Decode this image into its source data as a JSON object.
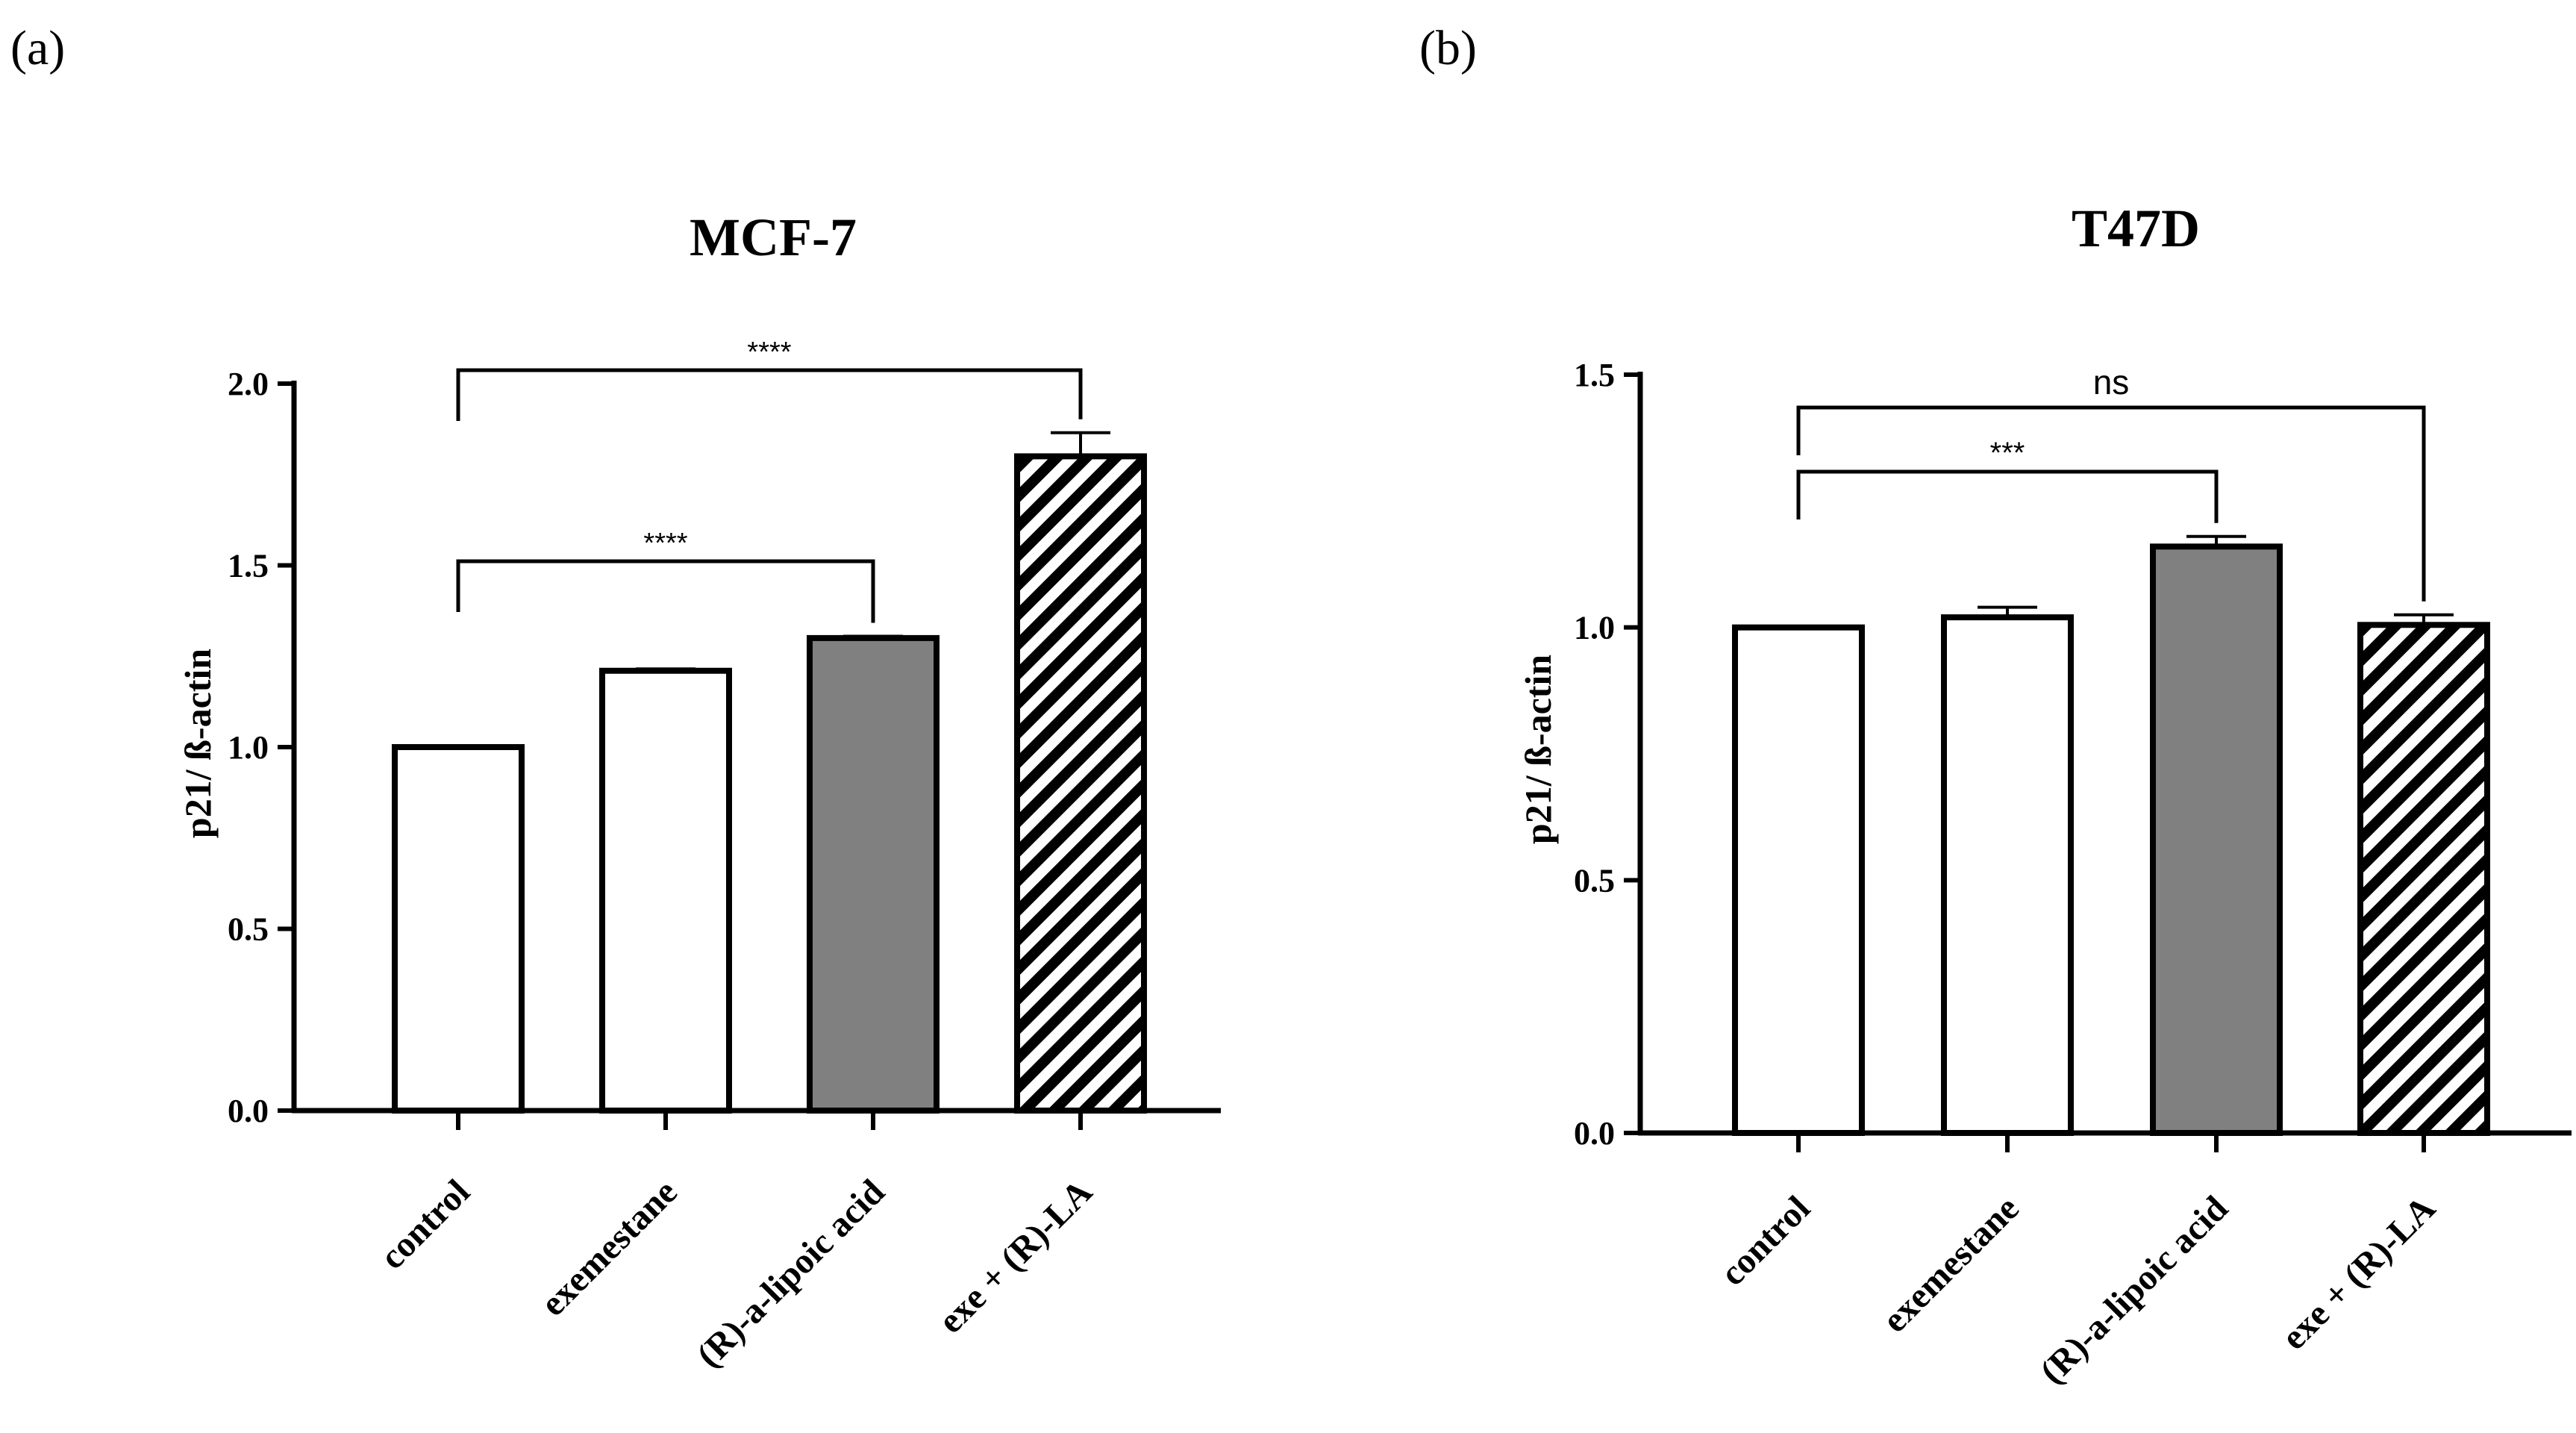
{
  "panels": [
    {
      "panel_label": "(a)",
      "chart_data": {
        "type": "bar",
        "title": "MCF-7",
        "xlabel": "",
        "ylabel": "p21/ ß-actin",
        "ylim": [
          0,
          2.0
        ],
        "yticks": [
          "0.0",
          "0.5",
          "1.0",
          "1.5",
          "2.0"
        ],
        "categories": [
          "control",
          "exemestane",
          "(R)-a-lipoic acid",
          "exe + (R)-LA"
        ],
        "values": [
          1.0,
          1.21,
          1.3,
          1.8
        ],
        "errors": [
          0.0,
          0.005,
          0.005,
          0.065
        ],
        "fills": [
          "white",
          "white",
          "gray",
          "hatch"
        ],
        "significance": [
          {
            "from": 0,
            "to": 2,
            "label": "****"
          },
          {
            "from": 0,
            "to": 3,
            "label": "****"
          }
        ]
      }
    },
    {
      "panel_label": "(b)",
      "chart_data": {
        "type": "bar",
        "title": "T47D",
        "xlabel": "",
        "ylabel": "p21/ ß-actin",
        "ylim": [
          0,
          1.5
        ],
        "yticks": [
          "0.0",
          "0.5",
          "1.0",
          "1.5"
        ],
        "categories": [
          "control",
          "exemestane",
          "(R)-a-lipoic acid",
          "exe + (R)-LA"
        ],
        "values": [
          1.0,
          1.02,
          1.16,
          1.005
        ],
        "errors": [
          0.0,
          0.02,
          0.02,
          0.02
        ],
        "fills": [
          "white",
          "white",
          "gray",
          "hatch"
        ],
        "significance": [
          {
            "from": 0,
            "to": 2,
            "label": "***"
          },
          {
            "from": 0,
            "to": 3,
            "label": "ns"
          }
        ]
      }
    }
  ],
  "colors": {
    "bar_gray": "#808080",
    "stroke": "#000000",
    "fill_white": "#ffffff"
  }
}
